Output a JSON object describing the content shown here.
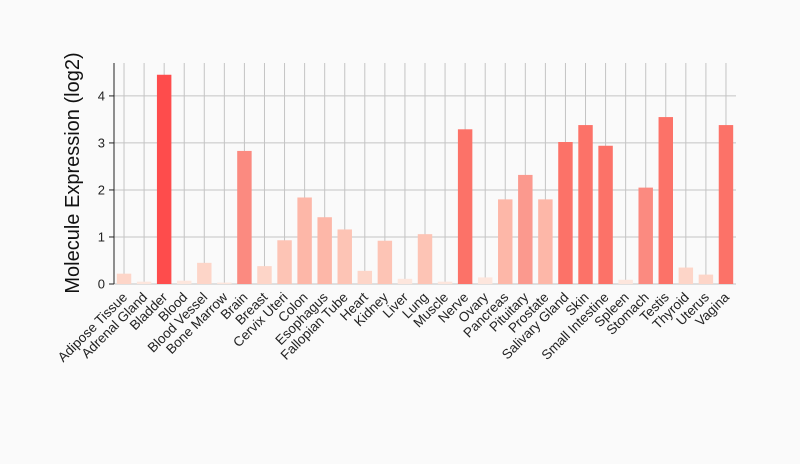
{
  "chart_data": {
    "type": "bar",
    "title": "",
    "xlabel": "",
    "ylabel": "Molecule Expression (log2)",
    "ylim": [
      0,
      4.7
    ],
    "yticks": [
      0,
      1,
      2,
      3,
      4
    ],
    "grid": true,
    "legend": "none",
    "categories": [
      "Adipose Tissue",
      "Adrenal Gland",
      "Bladder",
      "Blood",
      "Blood Vessel",
      "Bone Marrow",
      "Brain",
      "Breast",
      "Cervix Uteri",
      "Colon",
      "Esophagus",
      "Fallopian Tube",
      "Heart",
      "Kidney",
      "Liver",
      "Lung",
      "Muscle",
      "Nerve",
      "Ovary",
      "Pancreas",
      "Pituitary",
      "Prostate",
      "Salivary Gland",
      "Skin",
      "Small Intestine",
      "Spleen",
      "Stomach",
      "Testis",
      "Thyroid",
      "Uterus",
      "Vagina"
    ],
    "values": [
      0.22,
      0.05,
      4.45,
      0.07,
      0.45,
      0.03,
      2.83,
      0.38,
      0.93,
      1.84,
      1.42,
      1.16,
      0.28,
      0.92,
      0.11,
      1.06,
      0.05,
      3.29,
      0.14,
      1.8,
      2.32,
      1.8,
      3.02,
      3.38,
      2.94,
      0.09,
      2.05,
      3.55,
      0.35,
      0.2,
      3.38
    ],
    "colors": [
      "#fdd5c8",
      "#fde6dd",
      "#fe4c4c",
      "#fde6dd",
      "#fdd5c8",
      "#fde6dd",
      "#fb8a80",
      "#fdd5c8",
      "#fdc4b5",
      "#fdb7a8",
      "#fdb7a8",
      "#fdc4b5",
      "#fdd5c8",
      "#fdc4b5",
      "#fde6dd",
      "#fdc4b5",
      "#fde6dd",
      "#fc7268",
      "#fde6dd",
      "#fdb7a8",
      "#fb998e",
      "#fdb7a8",
      "#fc7268",
      "#fc7268",
      "#fc7268",
      "#fde6dd",
      "#fb8a80",
      "#fc7268",
      "#fdd5c8",
      "#fdd5c8",
      "#fc7268"
    ]
  }
}
